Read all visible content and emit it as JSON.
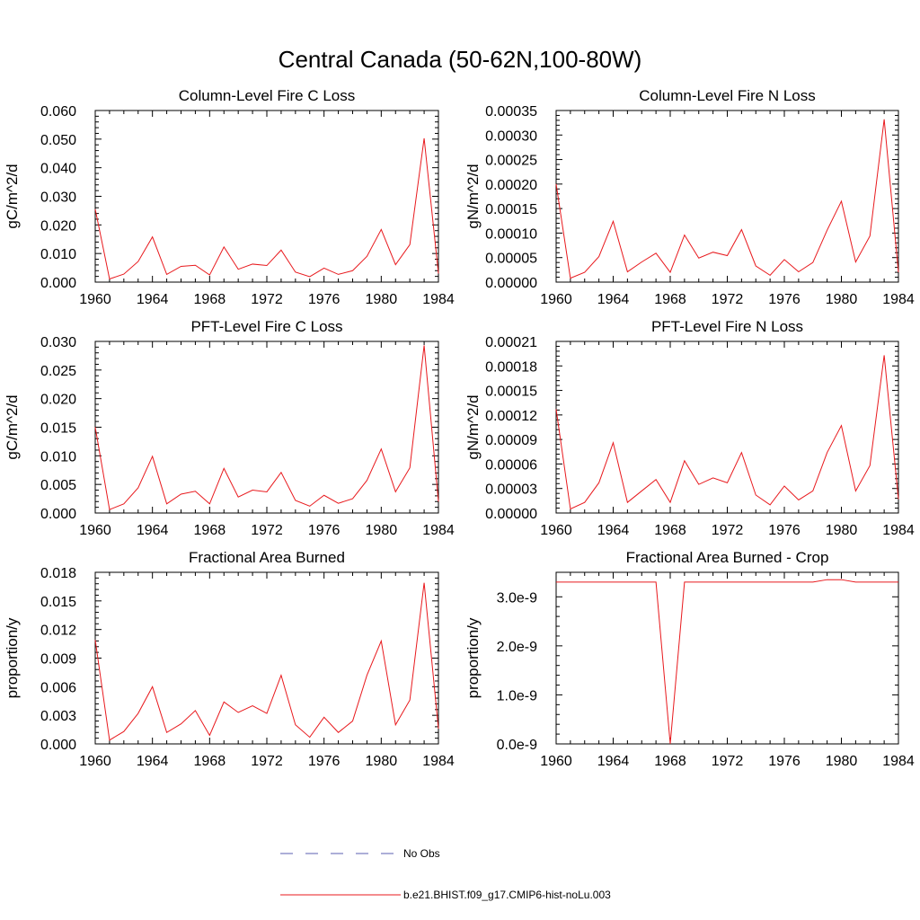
{
  "figure": {
    "title": "Central Canada (50-62N,100-80W)"
  },
  "legend": {
    "obs_label": "No Obs",
    "obs_color": "#5b5fb0",
    "model_label": "b.e21.BHIST.f09_g17.CMIP6-hist-noLu.003",
    "model_color": "#e8191d"
  },
  "chart_data": [
    {
      "type": "line",
      "title": "Column-Level Fire C Loss",
      "ylabel": "gC/m^2/d",
      "xlim": [
        1960,
        1984
      ],
      "ylim": [
        0,
        0.06
      ],
      "xticks": [
        "1960",
        "1964",
        "1968",
        "1972",
        "1976",
        "1980",
        "1984"
      ],
      "yticks": [
        "0.000",
        "0.010",
        "0.020",
        "0.030",
        "0.040",
        "0.050",
        "0.060"
      ],
      "series": [
        {
          "color": "#e8191d",
          "x": [
            1960,
            1961,
            1962,
            1963,
            1964,
            1965,
            1966,
            1967,
            1968,
            1969,
            1970,
            1971,
            1972,
            1973,
            1974,
            1975,
            1976,
            1977,
            1978,
            1979,
            1980,
            1981,
            1982,
            1983,
            1984
          ],
          "y": [
            0.0255,
            0.0011,
            0.0028,
            0.0072,
            0.0158,
            0.0027,
            0.0055,
            0.0059,
            0.0025,
            0.0123,
            0.0045,
            0.0063,
            0.0058,
            0.0112,
            0.0035,
            0.0019,
            0.0049,
            0.0027,
            0.004,
            0.009,
            0.0184,
            0.0061,
            0.0131,
            0.0503,
            0.003
          ]
        }
      ]
    },
    {
      "type": "line",
      "title": "Column-Level Fire N Loss",
      "ylabel": "gN/m^2/d",
      "xlim": [
        1960,
        1984
      ],
      "ylim": [
        0,
        0.00035
      ],
      "xticks": [
        "1960",
        "1964",
        "1968",
        "1972",
        "1976",
        "1980",
        "1984"
      ],
      "yticks": [
        "0.00000",
        "0.00005",
        "0.00010",
        "0.00015",
        "0.00020",
        "0.00025",
        "0.00030",
        "0.00035"
      ],
      "series": [
        {
          "color": "#e8191d",
          "x": [
            1960,
            1961,
            1962,
            1963,
            1964,
            1965,
            1966,
            1967,
            1968,
            1969,
            1970,
            1971,
            1972,
            1973,
            1974,
            1975,
            1976,
            1977,
            1978,
            1979,
            1980,
            1981,
            1982,
            1983,
            1984
          ],
          "y": [
            0.0002,
            8e-06,
            2e-05,
            5.2e-05,
            0.000124,
            2.1e-05,
            4.1e-05,
            5.9e-05,
            2e-05,
            9.6e-05,
            4.9e-05,
            6.1e-05,
            5.4e-05,
            0.000107,
            3.3e-05,
            1.4e-05,
            4.6e-05,
            2.1e-05,
            4e-05,
            0.000106,
            0.000165,
            4.1e-05,
            9.4e-05,
            0.000332,
            2e-05
          ]
        }
      ]
    },
    {
      "type": "line",
      "title": "PFT-Level Fire C Loss",
      "ylabel": "gC/m^2/d",
      "xlim": [
        1960,
        1984
      ],
      "ylim": [
        0,
        0.03
      ],
      "xticks": [
        "1960",
        "1964",
        "1968",
        "1972",
        "1976",
        "1980",
        "1984"
      ],
      "yticks": [
        "0.000",
        "0.005",
        "0.010",
        "0.015",
        "0.020",
        "0.025",
        "0.030"
      ],
      "series": [
        {
          "color": "#e8191d",
          "x": [
            1960,
            1961,
            1962,
            1963,
            1964,
            1965,
            1966,
            1967,
            1968,
            1969,
            1970,
            1971,
            1972,
            1973,
            1974,
            1975,
            1976,
            1977,
            1978,
            1979,
            1980,
            1981,
            1982,
            1983,
            1984
          ],
          "y": [
            0.015,
            0.0006,
            0.0016,
            0.0044,
            0.0099,
            0.0016,
            0.0033,
            0.0038,
            0.0016,
            0.0078,
            0.0028,
            0.004,
            0.0037,
            0.0071,
            0.0022,
            0.0012,
            0.0031,
            0.0017,
            0.0025,
            0.0057,
            0.0112,
            0.0037,
            0.0079,
            0.0293,
            0.002
          ]
        }
      ]
    },
    {
      "type": "line",
      "title": "PFT-Level Fire N Loss",
      "ylabel": "gN/m^2/d",
      "xlim": [
        1960,
        1984
      ],
      "ylim": [
        0,
        0.00021
      ],
      "xticks": [
        "1960",
        "1964",
        "1968",
        "1972",
        "1976",
        "1980",
        "1984"
      ],
      "yticks": [
        "0.00000",
        "0.00003",
        "0.00006",
        "0.00009",
        "0.00012",
        "0.00015",
        "0.00018",
        "0.00021"
      ],
      "series": [
        {
          "color": "#e8191d",
          "x": [
            1960,
            1961,
            1962,
            1963,
            1964,
            1965,
            1966,
            1967,
            1968,
            1969,
            1970,
            1971,
            1972,
            1973,
            1974,
            1975,
            1976,
            1977,
            1978,
            1979,
            1980,
            1981,
            1982,
            1983,
            1984
          ],
          "y": [
            0.000127,
            5e-06,
            1.3e-05,
            3.7e-05,
            8.6e-05,
            1.3e-05,
            2.7e-05,
            4.1e-05,
            1.3e-05,
            6.4e-05,
            3.5e-05,
            4.3e-05,
            3.7e-05,
            7.4e-05,
            2.2e-05,
            1e-05,
            3.3e-05,
            1.6e-05,
            2.7e-05,
            7.4e-05,
            0.000107,
            2.7e-05,
            5.8e-05,
            0.000193,
            1.7e-05
          ]
        }
      ]
    },
    {
      "type": "line",
      "title": "Fractional Area Burned",
      "ylabel": "proportion/y",
      "xlim": [
        1960,
        1984
      ],
      "ylim": [
        0,
        0.018
      ],
      "xticks": [
        "1960",
        "1964",
        "1968",
        "1972",
        "1976",
        "1980",
        "1984"
      ],
      "yticks": [
        "0.000",
        "0.003",
        "0.006",
        "0.009",
        "0.012",
        "0.015",
        "0.018"
      ],
      "series": [
        {
          "color": "#e8191d",
          "x": [
            1960,
            1961,
            1962,
            1963,
            1964,
            1965,
            1966,
            1967,
            1968,
            1969,
            1970,
            1971,
            1972,
            1973,
            1974,
            1975,
            1976,
            1977,
            1978,
            1979,
            1980,
            1981,
            1982,
            1983,
            1984
          ],
          "y": [
            0.0109,
            0.0004,
            0.0013,
            0.0032,
            0.006,
            0.0012,
            0.0021,
            0.0035,
            0.0009,
            0.0044,
            0.0033,
            0.004,
            0.0032,
            0.0072,
            0.002,
            0.0007,
            0.0028,
            0.0012,
            0.0024,
            0.0072,
            0.0108,
            0.002,
            0.0046,
            0.0169,
            0.0016
          ]
        }
      ]
    },
    {
      "type": "line",
      "title": "Fractional Area Burned - Crop",
      "ylabel": "proportion/y",
      "xlim": [
        1960,
        1984
      ],
      "ylim": [
        0,
        3.5e-09
      ],
      "xticks": [
        "1960",
        "1964",
        "1968",
        "1972",
        "1976",
        "1980",
        "1984"
      ],
      "yticks": [
        "0.0e-9",
        "1.0e-9",
        "2.0e-9",
        "3.0e-9"
      ],
      "ytick_values": [
        0,
        1e-09,
        2e-09,
        3e-09
      ],
      "series": [
        {
          "color": "#e8191d",
          "x": [
            1960,
            1961,
            1962,
            1963,
            1964,
            1965,
            1966,
            1967,
            1968,
            1969,
            1970,
            1971,
            1972,
            1973,
            1974,
            1975,
            1976,
            1977,
            1978,
            1979,
            1980,
            1981,
            1982,
            1983,
            1984
          ],
          "y": [
            3.3e-09,
            3.3e-09,
            3.3e-09,
            3.3e-09,
            3.3e-09,
            3.3e-09,
            3.3e-09,
            3.3e-09,
            0,
            3.3e-09,
            3.3e-09,
            3.3e-09,
            3.3e-09,
            3.3e-09,
            3.3e-09,
            3.3e-09,
            3.3e-09,
            3.3e-09,
            3.3e-09,
            3.35e-09,
            3.35e-09,
            3.3e-09,
            3.3e-09,
            3.3e-09,
            3.3e-09
          ]
        }
      ]
    }
  ]
}
